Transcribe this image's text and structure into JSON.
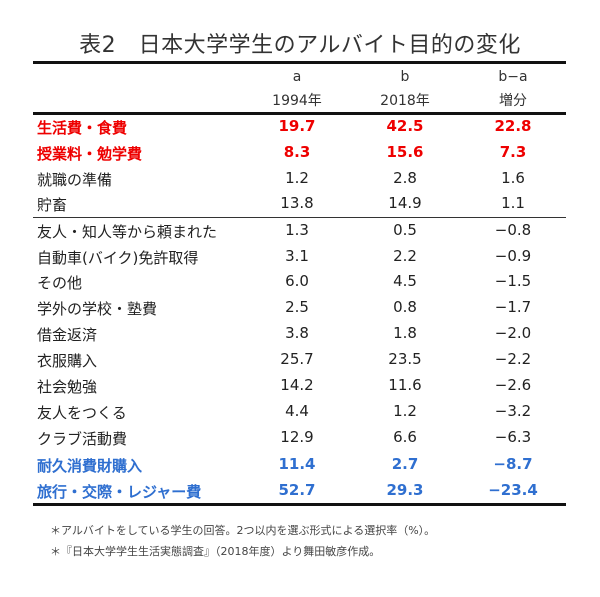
{
  "title": "表2　日本大学学生のアルバイト目的の変化",
  "header": {
    "col_a": {
      "top": "a",
      "bottom": "1994年"
    },
    "col_b": {
      "top": "b",
      "bottom": "2018年"
    },
    "col_diff": {
      "top": "b−a",
      "bottom": "増分"
    }
  },
  "colors": {
    "highlight_red": "#ee0000",
    "highlight_blue": "#2f6fd0",
    "text": "#222222"
  },
  "rows": [
    {
      "label": "生活費・食費",
      "a": "19.7",
      "b": "42.5",
      "diff": "22.8",
      "style": "red"
    },
    {
      "label": "授業料・勉学費",
      "a": "8.3",
      "b": "15.6",
      "diff": "7.3",
      "style": "red"
    },
    {
      "label": "就職の準備",
      "a": "1.2",
      "b": "2.8",
      "diff": "1.6",
      "style": "normal"
    },
    {
      "label": "貯畜",
      "a": "13.8",
      "b": "14.9",
      "diff": "1.1",
      "style": "normal"
    },
    {
      "label": "友人・知人等から頼まれた",
      "a": "1.3",
      "b": "0.5",
      "diff": "−0.8",
      "style": "normal"
    },
    {
      "label": "自動車(バイク)免許取得",
      "a": "3.1",
      "b": "2.2",
      "diff": "−0.9",
      "style": "normal"
    },
    {
      "label": "その他",
      "a": "6.0",
      "b": "4.5",
      "diff": "−1.5",
      "style": "normal"
    },
    {
      "label": "学外の学校・塾費",
      "a": "2.5",
      "b": "0.8",
      "diff": "−1.7",
      "style": "normal"
    },
    {
      "label": "借金返済",
      "a": "3.8",
      "b": "1.8",
      "diff": "−2.0",
      "style": "normal"
    },
    {
      "label": "衣服購入",
      "a": "25.7",
      "b": "23.5",
      "diff": "−2.2",
      "style": "normal"
    },
    {
      "label": "社会勉強",
      "a": "14.2",
      "b": "11.6",
      "diff": "−2.6",
      "style": "normal"
    },
    {
      "label": "友人をつくる",
      "a": "4.4",
      "b": "1.2",
      "diff": "−3.2",
      "style": "normal"
    },
    {
      "label": "クラブ活動費",
      "a": "12.9",
      "b": "6.6",
      "diff": "−6.3",
      "style": "normal"
    },
    {
      "label": "耐久消費財購入",
      "a": "11.4",
      "b": "2.7",
      "diff": "−8.7",
      "style": "blue"
    },
    {
      "label": "旅行・交際・レジャー費",
      "a": "52.7",
      "b": "29.3",
      "diff": "−23.4",
      "style": "blue"
    }
  ],
  "notes": [
    "＊アルバイトをしている学生の回答。2つ以内を選ぶ形式による選択率（%）。",
    "＊『日本大学学生生活実態調査』（2018年度）より舞田敏彦作成。"
  ]
}
